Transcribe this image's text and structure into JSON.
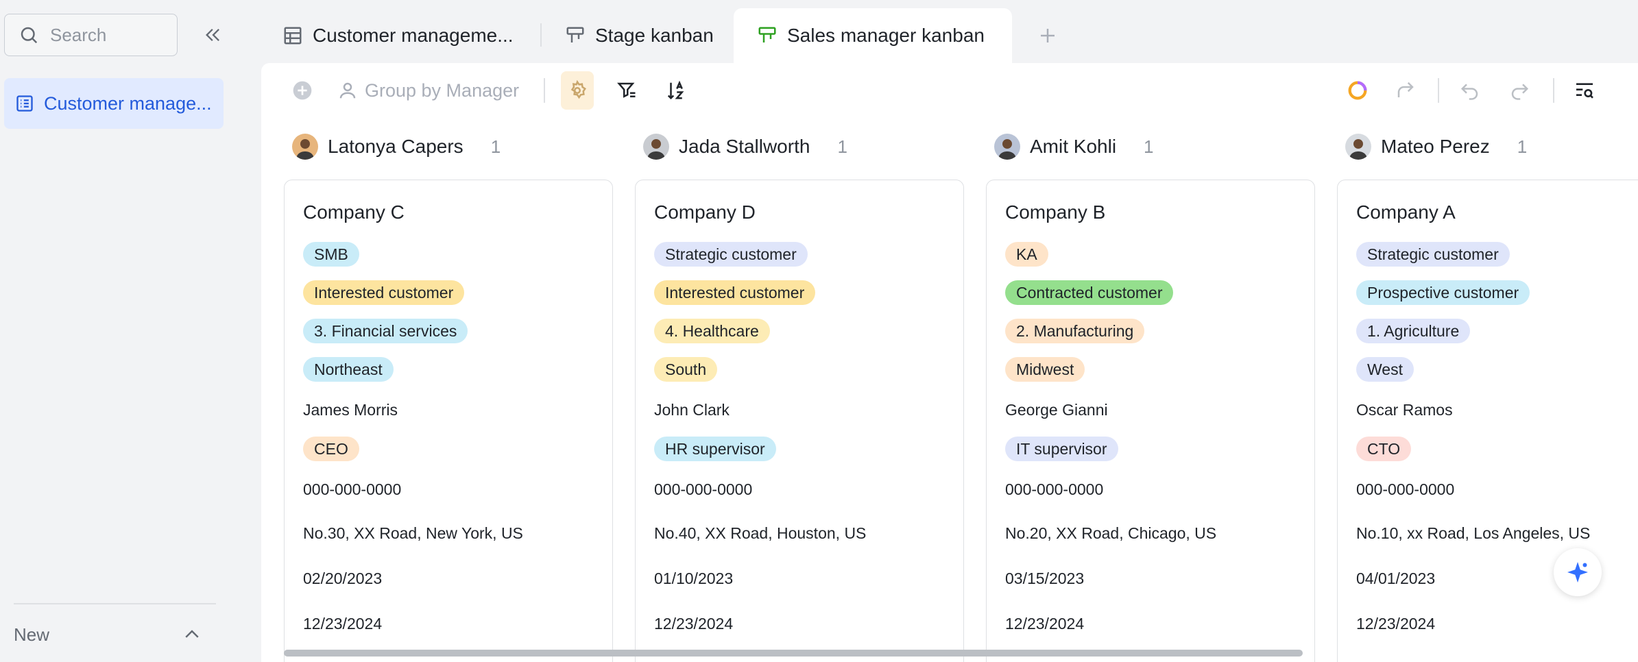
{
  "sidebar": {
    "search_placeholder": "Search",
    "nav_item": "Customer manage...",
    "new_label": "New"
  },
  "tabs": [
    {
      "label": "Customer manageme..."
    },
    {
      "label": "Stage kanban"
    },
    {
      "label": "Sales manager kanban"
    }
  ],
  "toolbar": {
    "group_label": "Group by Manager"
  },
  "colors": {
    "accent": "#245bdb",
    "tag_blue": "#c9ecf8",
    "tag_yellow": "#fde49f",
    "tag_lightyellow": "#fdecb5",
    "tag_indigo": "#dfe5fa",
    "tag_orange": "#fee4c9",
    "tag_green": "#94df8d",
    "tag_red": "#fddcd8"
  },
  "columns": [
    {
      "manager": "Latonya Capers",
      "count": "1",
      "avatar_bg": "#e7b57c",
      "card": {
        "title": "Company C",
        "tags": [
          {
            "text": "SMB",
            "color": "#c9ecf8"
          },
          {
            "text": "Interested customer",
            "color": "#fde49f"
          },
          {
            "text": "3. Financial services",
            "color": "#c9ecf8"
          },
          {
            "text": "Northeast",
            "color": "#c9ecf8"
          }
        ],
        "contact": "James Morris",
        "role": {
          "text": "CEO",
          "color": "#fee4c9"
        },
        "phone": "000-000-0000",
        "address": "No.30, XX Road, New York, US",
        "date1": "02/20/2023",
        "date2": "12/23/2024"
      }
    },
    {
      "manager": "Jada Stallworth",
      "count": "1",
      "avatar_bg": "#c9ccd1",
      "card": {
        "title": "Company D",
        "tags": [
          {
            "text": "Strategic customer",
            "color": "#dfe5fa"
          },
          {
            "text": "Interested customer",
            "color": "#fde49f"
          },
          {
            "text": "4. Healthcare",
            "color": "#fdecb5"
          },
          {
            "text": "South",
            "color": "#fdecb5"
          }
        ],
        "contact": "John Clark",
        "role": {
          "text": "HR supervisor",
          "color": "#c9ecf8"
        },
        "phone": "000-000-0000",
        "address": "No.40, XX Road, Houston, US",
        "date1": "01/10/2023",
        "date2": "12/23/2024"
      }
    },
    {
      "manager": "Amit Kohli",
      "count": "1",
      "avatar_bg": "#b9c3d6",
      "card": {
        "title": "Company B",
        "tags": [
          {
            "text": "KA",
            "color": "#fee4c9"
          },
          {
            "text": "Contracted customer",
            "color": "#94df8d"
          },
          {
            "text": "2. Manufacturing",
            "color": "#fee4c9"
          },
          {
            "text": "Midwest",
            "color": "#fee4c9"
          }
        ],
        "contact": "George Gianni",
        "role": {
          "text": "IT supervisor",
          "color": "#dfe5fa"
        },
        "phone": "000-000-0000",
        "address": "No.20, XX Road, Chicago, US",
        "date1": "03/15/2023",
        "date2": "12/23/2024"
      }
    },
    {
      "manager": "Mateo Perez",
      "count": "1",
      "avatar_bg": "#d7dbe0",
      "card": {
        "title": "Company A",
        "tags": [
          {
            "text": "Strategic customer",
            "color": "#dfe5fa"
          },
          {
            "text": "Prospective customer",
            "color": "#c9ecf8"
          },
          {
            "text": "1. Agriculture",
            "color": "#dfe5fa"
          },
          {
            "text": "West",
            "color": "#dfe5fa"
          }
        ],
        "contact": "Oscar Ramos",
        "role": {
          "text": "CTO",
          "color": "#fddcd8"
        },
        "phone": "000-000-0000",
        "address": "No.10, xx Road, Los Angeles, US",
        "date1": "04/01/2023",
        "date2": "12/23/2024"
      }
    }
  ]
}
